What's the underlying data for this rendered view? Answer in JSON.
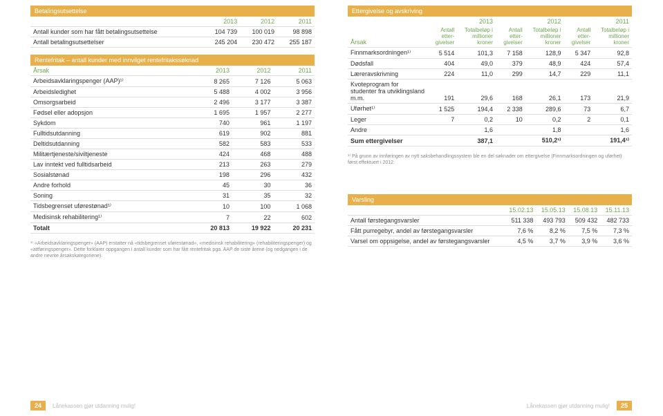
{
  "colors": {
    "accent": "#e8b04a",
    "headText": "#6fa84f",
    "border": "#ddd",
    "muted": "#888"
  },
  "fontsize": {
    "body": 9,
    "footnote": 7,
    "footer": 8
  },
  "left": {
    "sec1": {
      "title": "Betalingsutsettelse",
      "years": [
        "2013",
        "2012",
        "2011"
      ],
      "rows": [
        {
          "label": "Antall kunder som har fått betalingsutsettelse",
          "v": [
            "104 739",
            "100 019",
            "98 898"
          ]
        },
        {
          "label": "Antall betalingsutsettelser",
          "v": [
            "245 204",
            "230 472",
            "255 187"
          ]
        }
      ]
    },
    "sec2": {
      "title": "Rentefritak – antall kunder med innvilget rentefritakssøknad",
      "labelHead": "Årsak",
      "years": [
        "2013",
        "2012",
        "2011"
      ],
      "rows": [
        {
          "label": "Arbeidsavklaringspenger (AAP)¹⁾",
          "v": [
            "8 265",
            "7 126",
            "5 063"
          ]
        },
        {
          "label": "Arbeidsledighet",
          "v": [
            "5 488",
            "4 002",
            "3 956"
          ]
        },
        {
          "label": "Omsorgsarbeid",
          "v": [
            "2 496",
            "3 177",
            "3 387"
          ]
        },
        {
          "label": "Fødsel eller adopsjon",
          "v": [
            "1 695",
            "1 957",
            "2 277"
          ]
        },
        {
          "label": "Sykdom",
          "v": [
            "740",
            "961",
            "1 197"
          ]
        },
        {
          "label": "Fulltidsutdanning",
          "v": [
            "619",
            "902",
            "881"
          ]
        },
        {
          "label": "Deltidsutdanning",
          "v": [
            "582",
            "583",
            "533"
          ]
        },
        {
          "label": "Militærtjeneste/siviltjeneste",
          "v": [
            "424",
            "468",
            "488"
          ]
        },
        {
          "label": "Lav inntekt ved fulltidsarbeid",
          "v": [
            "213",
            "263",
            "279"
          ]
        },
        {
          "label": "Sosialstønad",
          "v": [
            "198",
            "296",
            "432"
          ]
        },
        {
          "label": "Andre forhold",
          "v": [
            "45",
            "30",
            "36"
          ]
        },
        {
          "label": "Soning",
          "v": [
            "31",
            "35",
            "32"
          ]
        },
        {
          "label": "Tidsbegrenset uførestønad¹⁾",
          "v": [
            "10",
            "100",
            "1 068"
          ]
        },
        {
          "label": "Medisinsk rehabilitering¹⁾",
          "v": [
            "7",
            "22",
            "602"
          ]
        }
      ],
      "totalLabel": "Totalt",
      "total": [
        "20 813",
        "19 922",
        "20 231"
      ],
      "footnote": "¹⁾ «Arbeidsavklaringspenger» (AAP) erstatter nå «tidsbegrenset uførestønad», «medisinsk rehabilitering» (rehabiliteringspenger) og «attføringspenger». Dette forklarer oppgangen i antall kunder som har fått rentefritak pga. AAP de siste årene (og nedgangen i de andre nevnte årsakskategoriene)."
    }
  },
  "right": {
    "sec1": {
      "title": "Ettergivelse og avskriving",
      "years": [
        "2013",
        "2012",
        "2011"
      ],
      "labelHead": "Årsak",
      "sub1": "Antall etter-givelser",
      "sub2": "Totalbeløp i millioner kroner",
      "rows": [
        {
          "label": "Finnmarksordningen¹⁾",
          "v": [
            "5 514",
            "101,3",
            "7 158",
            "128,9",
            "5 347",
            "92,8"
          ]
        },
        {
          "label": "Dødsfall",
          "v": [
            "404",
            "49,0",
            "379",
            "48,9",
            "424",
            "57,4"
          ]
        },
        {
          "label": "Læreravskrivning",
          "v": [
            "224",
            "11,0",
            "299",
            "14,7",
            "229",
            "11,1"
          ]
        },
        {
          "label": "Kvoteprogram for studenter fra utviklingsland m.m.",
          "v": [
            "191",
            "29,6",
            "168",
            "26,1",
            "173",
            "21,9"
          ]
        },
        {
          "label": "Uførhet¹⁾",
          "v": [
            "1 525",
            "194,4",
            "2 338",
            "289,6",
            "73",
            "6,7"
          ]
        },
        {
          "label": "Leger",
          "v": [
            "7",
            "0,2",
            "10",
            "0,2",
            "2",
            "0,1"
          ]
        },
        {
          "label": "Andre",
          "v": [
            "",
            "1,6",
            "",
            "1,8",
            "",
            "1,6"
          ]
        }
      ],
      "totalLabel": "Sum ettergivelser",
      "total": [
        "",
        "387,1",
        "",
        "510,2¹⁾",
        "",
        "191,4¹⁾"
      ],
      "footnote": "¹⁾ På grunn av innføringen av nytt saksbehandlingssystem ble en del søknader om ettergivelse (Finnmarksordningen og uførhet) først effektuert i 2012."
    },
    "sec2": {
      "title": "Varsling",
      "cols": [
        "15.02.13",
        "15.05.13",
        "15.08.13",
        "15.11.13"
      ],
      "rows": [
        {
          "label": "Antall førstegangsvarsler",
          "v": [
            "511 338",
            "493 793",
            "509 432",
            "482 733"
          ]
        },
        {
          "label": "Fått purregebyr, andel av førstegangsvarsler",
          "v": [
            "7,6 %",
            "8,2 %",
            "7,5 %",
            "7,3 %"
          ]
        },
        {
          "label": "Varsel om oppsigelse, andel av førstegangsvarsler",
          "v": [
            "4,5 %",
            "3,7 %",
            "3,9 %",
            "3,6 %"
          ]
        }
      ]
    }
  },
  "footer": {
    "slogan": "Lånekassen gjør utdanning mulig!",
    "pgLeft": "24",
    "pgRight": "25"
  }
}
